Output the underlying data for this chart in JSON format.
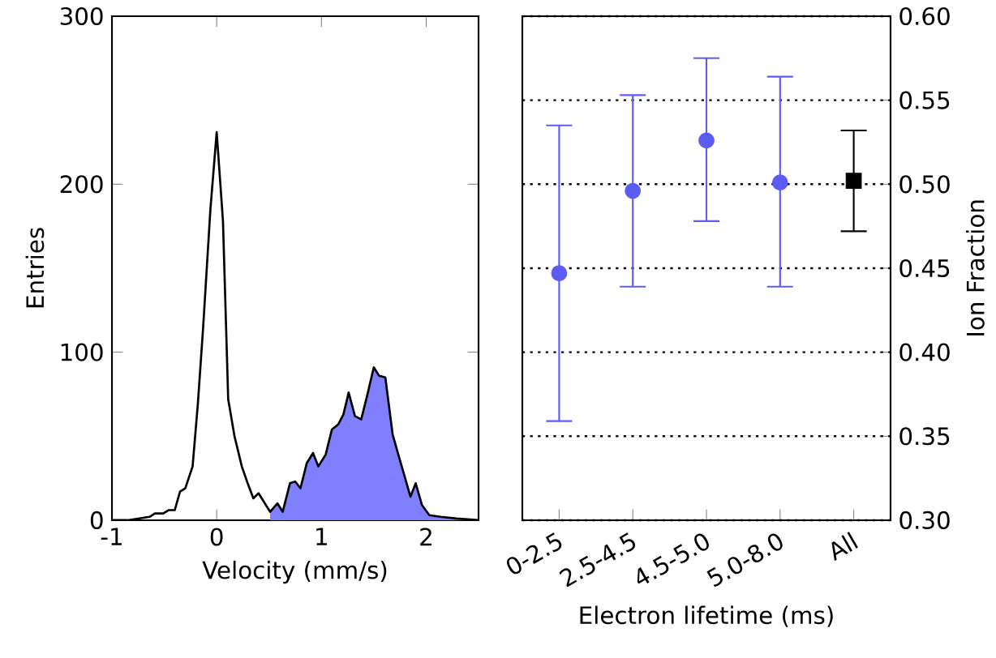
{
  "chart_data": [
    {
      "type": "line",
      "xlabel": "Velocity (mm/s)",
      "ylabel": "Entries",
      "xlim": [
        -1,
        2.5
      ],
      "xticks": [
        -1,
        0,
        1,
        2
      ],
      "ylim": [
        0,
        300
      ],
      "yticks": [
        0,
        100,
        200,
        300
      ],
      "series": [
        {
          "type": "area",
          "color": "#8080ff",
          "x": [
            0.51,
            0.58,
            0.63,
            0.7,
            0.75,
            0.8,
            0.86,
            0.92,
            0.97,
            1.04,
            1.1,
            1.16,
            1.21,
            1.26,
            1.32,
            1.38,
            1.44,
            1.5,
            1.55,
            1.61,
            1.68,
            1.73,
            1.79,
            1.85,
            1.9,
            1.96,
            2.03,
            2.14,
            2.29,
            2.5
          ],
          "values": [
            5,
            10,
            5,
            22,
            23,
            19,
            34,
            40,
            32,
            39,
            54,
            57,
            63,
            76,
            62,
            60,
            75,
            91,
            86,
            85,
            51,
            40,
            27,
            14,
            22,
            9,
            3,
            2,
            1,
            0
          ]
        },
        {
          "type": "line",
          "color": "#000000",
          "x": [
            -1.0,
            -0.85,
            -0.64,
            -0.59,
            -0.51,
            -0.46,
            -0.4,
            -0.35,
            -0.3,
            -0.23,
            -0.18,
            -0.13,
            -0.06,
            0,
            0.06,
            0.11,
            0.17,
            0.24,
            0.29,
            0.35,
            0.4,
            0.46,
            0.51,
            0.58,
            0.63,
            0.7,
            0.75,
            0.8,
            0.86,
            0.92,
            0.97,
            1.04,
            1.1,
            1.16,
            1.21,
            1.26,
            1.32,
            1.38,
            1.44,
            1.5,
            1.55,
            1.61,
            1.68,
            1.73,
            1.79,
            1.85,
            1.9,
            1.96,
            2.03,
            2.14,
            2.29,
            2.5
          ],
          "values": [
            0,
            0,
            2,
            4,
            4,
            6,
            6,
            17,
            19,
            32,
            69,
            114,
            185,
            231,
            178,
            72,
            50,
            32,
            23,
            13,
            16,
            10,
            5,
            10,
            5,
            22,
            23,
            19,
            34,
            40,
            32,
            39,
            54,
            57,
            63,
            76,
            62,
            60,
            75,
            91,
            86,
            85,
            51,
            40,
            27,
            14,
            22,
            9,
            3,
            2,
            1,
            0
          ]
        }
      ]
    },
    {
      "type": "scatter",
      "xlabel": "Electron lifetime (ms)",
      "y2label": "Ion Fraction",
      "categories": [
        "0-2.5",
        "2.5-4.5",
        "4.5-5.0",
        "5.0-8.0",
        "All"
      ],
      "y2lim": [
        0.3,
        0.6
      ],
      "y2ticks": [
        {
          "value": 0.3,
          "label": "0.30"
        },
        {
          "value": 0.35,
          "label": "0.35"
        },
        {
          "value": 0.4,
          "label": "0.40"
        },
        {
          "value": 0.45,
          "label": "0.45"
        },
        {
          "value": 0.5,
          "label": "0.50"
        },
        {
          "value": 0.55,
          "label": "0.55"
        },
        {
          "value": 0.6,
          "label": "0.60"
        }
      ],
      "grid": "y",
      "series": [
        {
          "axis": "y2",
          "color": "#5c5cf5",
          "marker": "circle",
          "values": [
            0.447,
            0.496,
            0.526,
            0.501,
            null
          ],
          "errors": [
            [
              0.359,
              0.535
            ],
            [
              0.439,
              0.553
            ],
            [
              0.478,
              0.575
            ],
            [
              0.439,
              0.564
            ],
            null
          ]
        },
        {
          "axis": "y2",
          "color": "#000000",
          "marker": "square",
          "values": [
            null,
            null,
            null,
            null,
            0.502
          ],
          "errors": [
            null,
            null,
            null,
            null,
            [
              0.472,
              0.532
            ]
          ]
        }
      ]
    }
  ]
}
